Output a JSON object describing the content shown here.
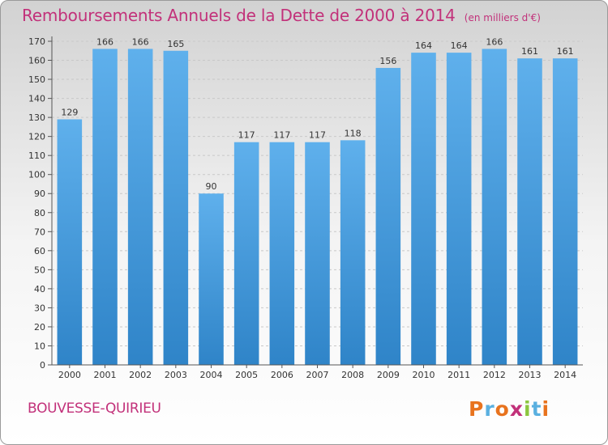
{
  "header": {
    "title": "Remboursements Annuels de la Dette de 2000 à 2014",
    "subtitle": "(en milliers d'€)"
  },
  "footer": {
    "place": "BOUVESSE-QUIRIEU",
    "brand": "Proxiti",
    "brand_colors": [
      "#e8731e",
      "#5ab0e0",
      "#e8731e",
      "#c2317a",
      "#8cc63f",
      "#5ab0e0",
      "#e8731e"
    ]
  },
  "colors": {
    "bar": "#5aa9e6",
    "bar_dark": "#2f84c8",
    "accent": "#c2317a",
    "grid": "#c8c8c8",
    "text": "#333333"
  },
  "chart_data": {
    "type": "bar",
    "title": "Remboursements Annuels de la Dette de 2000 à 2014",
    "subtitle": "(en milliers d'€)",
    "categories": [
      "2000",
      "2001",
      "2002",
      "2003",
      "2004",
      "2005",
      "2006",
      "2007",
      "2008",
      "2009",
      "2010",
      "2011",
      "2012",
      "2013",
      "2014"
    ],
    "values": [
      129,
      166,
      166,
      165,
      90,
      117,
      117,
      117,
      118,
      156,
      164,
      164,
      166,
      161,
      161
    ],
    "ylim": [
      0,
      170
    ],
    "yticks": [
      0,
      10,
      20,
      30,
      40,
      50,
      60,
      70,
      80,
      90,
      100,
      110,
      120,
      130,
      140,
      150,
      160,
      170
    ],
    "grid": true,
    "data_labels": true
  }
}
